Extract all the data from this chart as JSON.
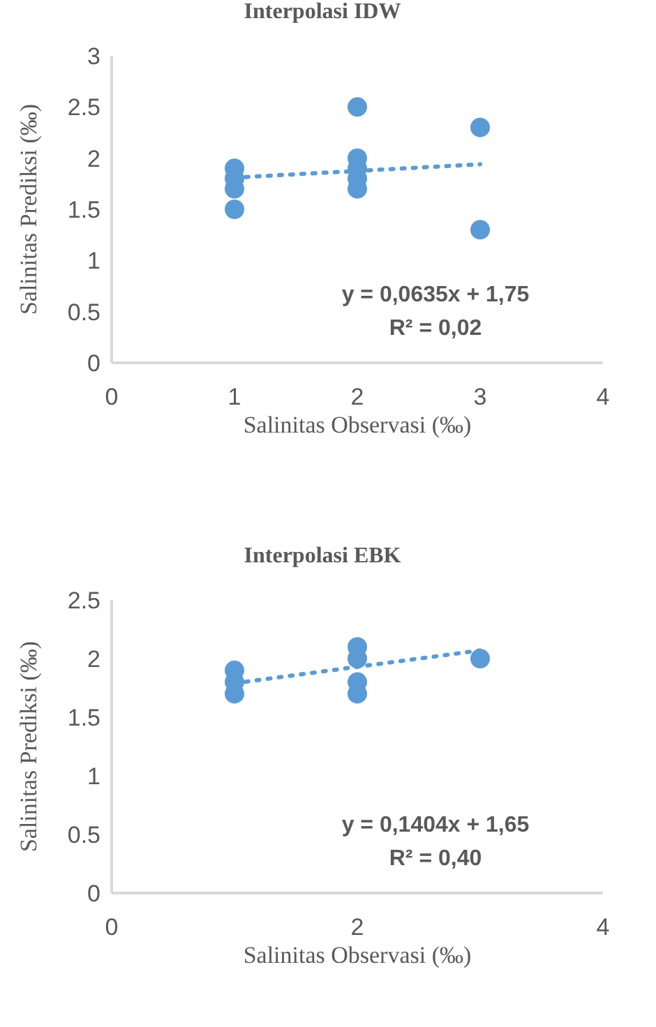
{
  "chart_data": [
    {
      "type": "scatter",
      "title": "Interpolasi IDW",
      "xlabel": "Salinitas Observasi (‰)",
      "ylabel": "Salinitas Prediksi (‰)",
      "xlim": [
        0,
        4
      ],
      "xticks": [
        0,
        1,
        2,
        3,
        4
      ],
      "ylim": [
        0,
        3
      ],
      "yticks": [
        0,
        0.5,
        1,
        1.5,
        2,
        2.5,
        3
      ],
      "grid": false,
      "series": [
        {
          "marker": "circle",
          "color": "#5b9bd5",
          "x": [
            1,
            1,
            1,
            1,
            2,
            2,
            2,
            2,
            2,
            3,
            3
          ],
          "values": [
            1.9,
            1.8,
            1.7,
            1.5,
            2.5,
            2.0,
            1.9,
            1.8,
            1.7,
            2.3,
            1.3
          ]
        },
        {
          "type": "line",
          "marker": "none",
          "color": "#5b9bd5",
          "line_style": "dotted",
          "x": [
            1,
            3
          ],
          "values": [
            1.81,
            1.94
          ]
        }
      ],
      "annotations": [
        "y = 0,0635x + 1,75",
        "R² = 0,02"
      ]
    },
    {
      "type": "scatter",
      "title": "Interpolasi EBK",
      "xlabel": "Salinitas Observasi (‰)",
      "ylabel": "Salinitas Prediksi (‰)",
      "xlim": [
        0,
        4
      ],
      "xticks": [
        0,
        2,
        4
      ],
      "ylim": [
        0,
        2.5
      ],
      "yticks": [
        0,
        0.5,
        1,
        1.5,
        2,
        2.5
      ],
      "grid": false,
      "series": [
        {
          "marker": "circle",
          "color": "#5b9bd5",
          "x": [
            1,
            1,
            1,
            2,
            2,
            2,
            2,
            3
          ],
          "values": [
            1.9,
            1.8,
            1.7,
            2.1,
            2.0,
            1.8,
            1.7,
            2.0
          ]
        },
        {
          "type": "line",
          "marker": "none",
          "color": "#5b9bd5",
          "line_style": "dotted",
          "x": [
            1,
            3
          ],
          "values": [
            1.79,
            2.07
          ]
        }
      ],
      "annotations": [
        "y = 0,1404x + 1,65",
        "R² = 0,40"
      ]
    }
  ]
}
